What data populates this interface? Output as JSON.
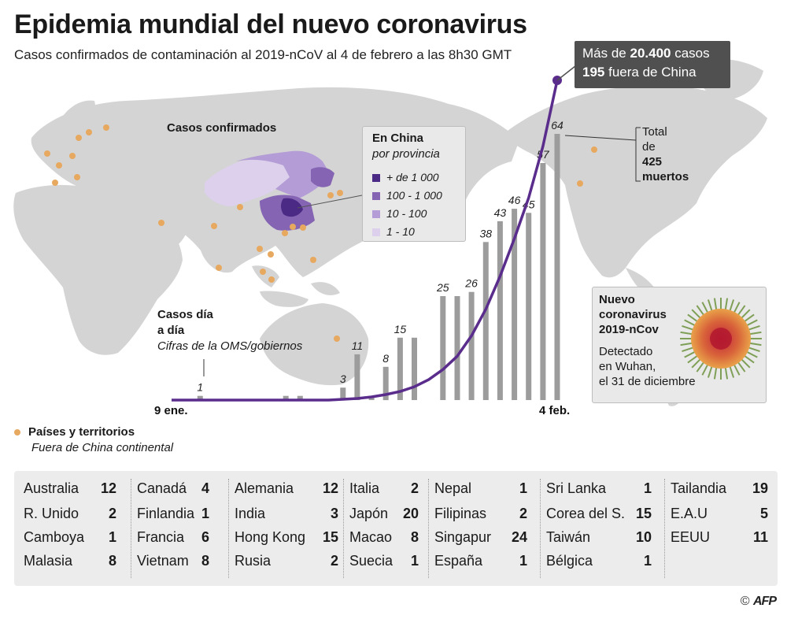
{
  "header": {
    "title": "Epidemia mundial del nuevo coronavirus",
    "subtitle": "Casos confirmados de contaminación al 2019-nCoV al 4 de febrero a las 8h30 GMT"
  },
  "map_label": "Casos confirmados",
  "china_legend": {
    "title": "En China",
    "subtitle": "por provincia",
    "items": [
      {
        "label": "+ de 1 000",
        "color": "#4b2a86"
      },
      {
        "label": "100 - 1 000",
        "color": "#8464b3"
      },
      {
        "label": "10 - 100",
        "color": "#b49cd6"
      },
      {
        "label": "1 - 10",
        "color": "#dcd0ec"
      }
    ]
  },
  "callout": {
    "prefix": "Más de ",
    "cases": "20.400",
    "suffix": " casos",
    "outside_count": "195",
    "outside_label": " fuera de China"
  },
  "deaths": {
    "line1": "Total",
    "line2": "de",
    "count": "425",
    "label": "muertos"
  },
  "virus_box": {
    "title1": "Nuevo",
    "title2": "coronavirus",
    "title3": "2019-nCov",
    "desc1": "Detectado",
    "desc2": "en Wuhan,",
    "desc3": "el 31 de diciembre"
  },
  "daily_label": {
    "line1": "Casos día",
    "line2": "a día",
    "line3": "Cifras de la OMS/gobiernos"
  },
  "key": {
    "label": "Países y territorios",
    "sublabel": "Fuera de China continental"
  },
  "chart_data": {
    "type": "bar",
    "title": "Casos día a día",
    "subtitle": "Cifras de la OMS/gobiernos",
    "x_start": "9 ene.",
    "x_end": "4 feb.",
    "series": [
      {
        "name": "Casos día a día (fuera de China)",
        "values": [
          0,
          0,
          1,
          0,
          0,
          0,
          0,
          0,
          1,
          1,
          0,
          0,
          3,
          11,
          1,
          8,
          15,
          15,
          0,
          25,
          25,
          26,
          38,
          43,
          46,
          45,
          57,
          64
        ],
        "labels": [
          null,
          null,
          "1",
          null,
          null,
          null,
          null,
          null,
          null,
          null,
          null,
          null,
          "3",
          "11",
          null,
          "8",
          "15",
          null,
          null,
          "25",
          null,
          "26",
          "38",
          "43",
          "46",
          "45",
          "57",
          "64"
        ]
      },
      {
        "name": "Casos confirmados acumulados (curva)",
        "values": [
          0,
          0,
          0,
          0,
          0,
          0,
          0,
          0,
          0,
          0,
          0,
          0,
          50,
          100,
          200,
          350,
          550,
          850,
          1300,
          1950,
          2800,
          4100,
          5800,
          7900,
          10300,
          12900,
          16200,
          20400
        ]
      }
    ],
    "curve_end_label": "Más de 20.400 casos"
  },
  "table": {
    "columns": [
      [
        [
          "Australia",
          "12"
        ],
        [
          "R. Unido",
          "2"
        ],
        [
          "Camboya",
          "1"
        ],
        [
          "Malasia",
          "8"
        ]
      ],
      [
        [
          "Canadá",
          "4"
        ],
        [
          "Finlandia",
          "1"
        ],
        [
          "Francia",
          "6"
        ],
        [
          "Vietnam",
          "8"
        ]
      ],
      [
        [
          "Alemania",
          "12"
        ],
        [
          "India",
          "3"
        ],
        [
          "Hong Kong",
          "15"
        ],
        [
          "Rusia",
          "2"
        ]
      ],
      [
        [
          "Italia",
          "2"
        ],
        [
          "Japón",
          "20"
        ],
        [
          "Macao",
          "8"
        ],
        [
          "Suecia",
          "1"
        ]
      ],
      [
        [
          "Nepal",
          "1"
        ],
        [
          "Filipinas",
          "2"
        ],
        [
          "Singapur",
          "24"
        ],
        [
          "España",
          "1"
        ]
      ],
      [
        [
          "Sri Lanka",
          "1"
        ],
        [
          "Corea del S.",
          "15"
        ],
        [
          "Taiwán",
          "10"
        ],
        [
          "Bélgica",
          "1"
        ]
      ],
      [
        [
          "Tailandia",
          "19"
        ],
        [
          "E.A.U",
          "5"
        ],
        [
          "EEUU",
          "11"
        ]
      ]
    ]
  },
  "credit": {
    "symbol": "©",
    "brand": "AFP"
  },
  "colors": {
    "land": "#d4d4d4",
    "bar": "#9c9c9c",
    "curve": "#5a2d8c",
    "dot": "#e7a85f"
  }
}
